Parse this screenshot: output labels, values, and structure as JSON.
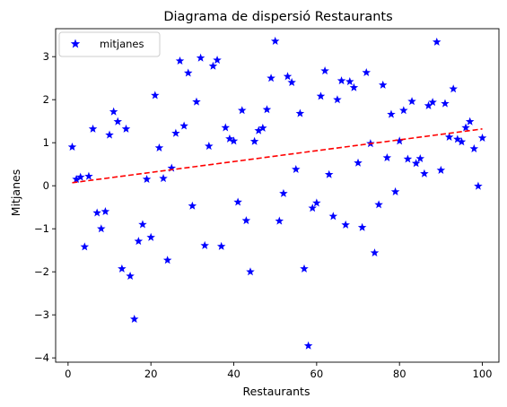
{
  "chart_data": {
    "type": "scatter",
    "title": "Diagrama de dispersió Restaurants",
    "xlabel": "Restaurants",
    "ylabel": "Mitjanes",
    "xlim": [
      -3,
      104
    ],
    "ylim": [
      -4.1,
      3.65
    ],
    "xticks": [
      0,
      20,
      40,
      60,
      80,
      100
    ],
    "yticks": [
      -4,
      -3,
      -2,
      -1,
      0,
      1,
      2,
      3
    ],
    "grid": false,
    "legend_position": "upper-left",
    "series": [
      {
        "name": "mitjanes",
        "marker": "star",
        "color": "#0000ff",
        "x": [
          1,
          2,
          3,
          4,
          5,
          6,
          7,
          8,
          9,
          10,
          11,
          12,
          13,
          14,
          15,
          16,
          17,
          18,
          19,
          20,
          21,
          22,
          23,
          24,
          25,
          26,
          27,
          28,
          29,
          30,
          31,
          32,
          33,
          34,
          35,
          36,
          37,
          38,
          39,
          40,
          41,
          42,
          43,
          44,
          45,
          46,
          47,
          48,
          49,
          50,
          51,
          52,
          53,
          54,
          55,
          56,
          57,
          58,
          59,
          60,
          61,
          62,
          63,
          64,
          65,
          66,
          67,
          68,
          69,
          70,
          71,
          72,
          73,
          74,
          75,
          76,
          77,
          78,
          79,
          80,
          81,
          82,
          83,
          84,
          85,
          86,
          87,
          88,
          89,
          90,
          91,
          92,
          93,
          94,
          95,
          96,
          97,
          98,
          99,
          100
        ],
        "y": [
          0.9,
          0.15,
          0.2,
          -1.42,
          0.22,
          1.32,
          -0.63,
          -1.0,
          -0.6,
          1.18,
          1.72,
          1.49,
          -1.93,
          1.32,
          -2.1,
          -3.1,
          -1.29,
          -0.9,
          0.15,
          -1.2,
          2.1,
          0.88,
          0.17,
          -1.73,
          0.41,
          1.22,
          2.9,
          1.39,
          2.62,
          -0.47,
          1.95,
          2.97,
          -1.39,
          0.92,
          2.78,
          2.92,
          -1.41,
          1.35,
          1.09,
          1.04,
          -0.38,
          1.75,
          -0.81,
          -2.0,
          1.03,
          1.28,
          1.34,
          1.77,
          2.5,
          3.36,
          -0.82,
          -0.18,
          2.54,
          2.4,
          0.38,
          1.68,
          -1.93,
          -3.72,
          -0.52,
          -0.4,
          2.08,
          2.67,
          0.26,
          -0.71,
          2.0,
          2.44,
          -0.91,
          2.42,
          2.28,
          0.53,
          -0.97,
          2.63,
          0.98,
          -1.56,
          -0.44,
          2.34,
          0.65,
          1.66,
          -0.14,
          1.04,
          1.75,
          0.62,
          1.96,
          0.52,
          0.63,
          0.28,
          1.86,
          1.94,
          3.34,
          0.36,
          1.91,
          1.13,
          2.25,
          1.08,
          1.02,
          1.35,
          1.49,
          0.86,
          -0.01,
          1.11
        ]
      },
      {
        "name": "",
        "type": "line",
        "style": "dashed",
        "color": "#ff0000",
        "x": [
          1,
          100
        ],
        "y": [
          0.07,
          1.32
        ]
      }
    ]
  }
}
